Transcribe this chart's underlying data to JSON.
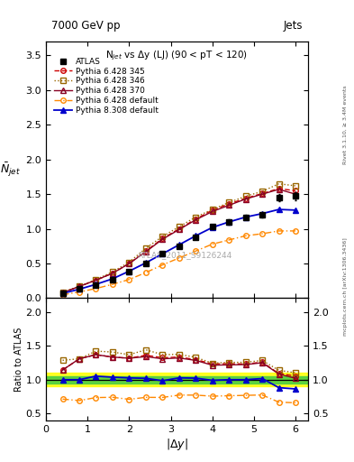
{
  "title_top": "7000 GeV pp",
  "title_right": "Jets",
  "plot_title": "N$_{jet}$ vs $\\Delta$y (LJ) (90 < pT < 120)",
  "watermark": "ATLAS_2011_S9126244",
  "right_label": "Rivet 3.1.10, ≥ 3.4M events",
  "arxiv_label": "mcplots.cern.ch [arXiv:1306.3436]",
  "ylabel_main": "$\\bar{N}_{jet}$",
  "ylabel_ratio": "Ratio to ATLAS",
  "xlabel": "$|\\Delta y|$",
  "xlim": [
    0,
    6.3
  ],
  "ylim_main": [
    0,
    3.7
  ],
  "ylim_ratio": [
    0.4,
    2.2
  ],
  "yticks_main": [
    0,
    0.5,
    1.0,
    1.5,
    2.0,
    2.5,
    3.0,
    3.5
  ],
  "yticks_ratio": [
    0.5,
    1.0,
    1.5,
    2.0
  ],
  "xticks": [
    0,
    1,
    2,
    3,
    4,
    5,
    6
  ],
  "x_data": [
    0.4,
    0.8,
    1.2,
    1.6,
    2.0,
    2.4,
    2.8,
    3.2,
    3.6,
    4.0,
    4.4,
    4.8,
    5.2,
    5.6,
    6.0
  ],
  "atlas_y": [
    0.07,
    0.13,
    0.19,
    0.27,
    0.38,
    0.5,
    0.65,
    0.75,
    0.88,
    1.03,
    1.1,
    1.17,
    1.2,
    1.45,
    1.47
  ],
  "atlas_yerr": [
    0.005,
    0.008,
    0.01,
    0.012,
    0.015,
    0.018,
    0.022,
    0.025,
    0.028,
    0.032,
    0.035,
    0.038,
    0.04,
    0.05,
    0.06
  ],
  "p345_y": [
    0.08,
    0.17,
    0.26,
    0.36,
    0.5,
    0.68,
    0.86,
    1.0,
    1.14,
    1.27,
    1.36,
    1.44,
    1.51,
    1.58,
    1.55
  ],
  "p346_y": [
    0.09,
    0.17,
    0.27,
    0.38,
    0.52,
    0.72,
    0.89,
    1.03,
    1.17,
    1.28,
    1.38,
    1.47,
    1.54,
    1.65,
    1.62
  ],
  "p370_y": [
    0.08,
    0.17,
    0.26,
    0.36,
    0.5,
    0.67,
    0.85,
    0.99,
    1.13,
    1.25,
    1.34,
    1.43,
    1.5,
    1.57,
    1.5
  ],
  "pdef_y": [
    0.05,
    0.09,
    0.14,
    0.2,
    0.27,
    0.37,
    0.48,
    0.58,
    0.68,
    0.78,
    0.84,
    0.9,
    0.93,
    0.97,
    0.97
  ],
  "p8def_y": [
    0.07,
    0.13,
    0.2,
    0.28,
    0.39,
    0.51,
    0.64,
    0.77,
    0.9,
    1.02,
    1.1,
    1.17,
    1.22,
    1.28,
    1.27
  ],
  "green_band": [
    0.95,
    1.05
  ],
  "yellow_band": [
    0.9,
    1.1
  ],
  "color_p345": "#cc0000",
  "color_p346": "#996600",
  "color_p370": "#880022",
  "color_pdef": "#ff8800",
  "color_p8def": "#0000cc",
  "color_atlas": "#000000",
  "legend_entries": [
    "ATLAS",
    "Pythia 6.428 345",
    "Pythia 6.428 346",
    "Pythia 6.428 370",
    "Pythia 6.428 default",
    "Pythia 8.308 default"
  ]
}
